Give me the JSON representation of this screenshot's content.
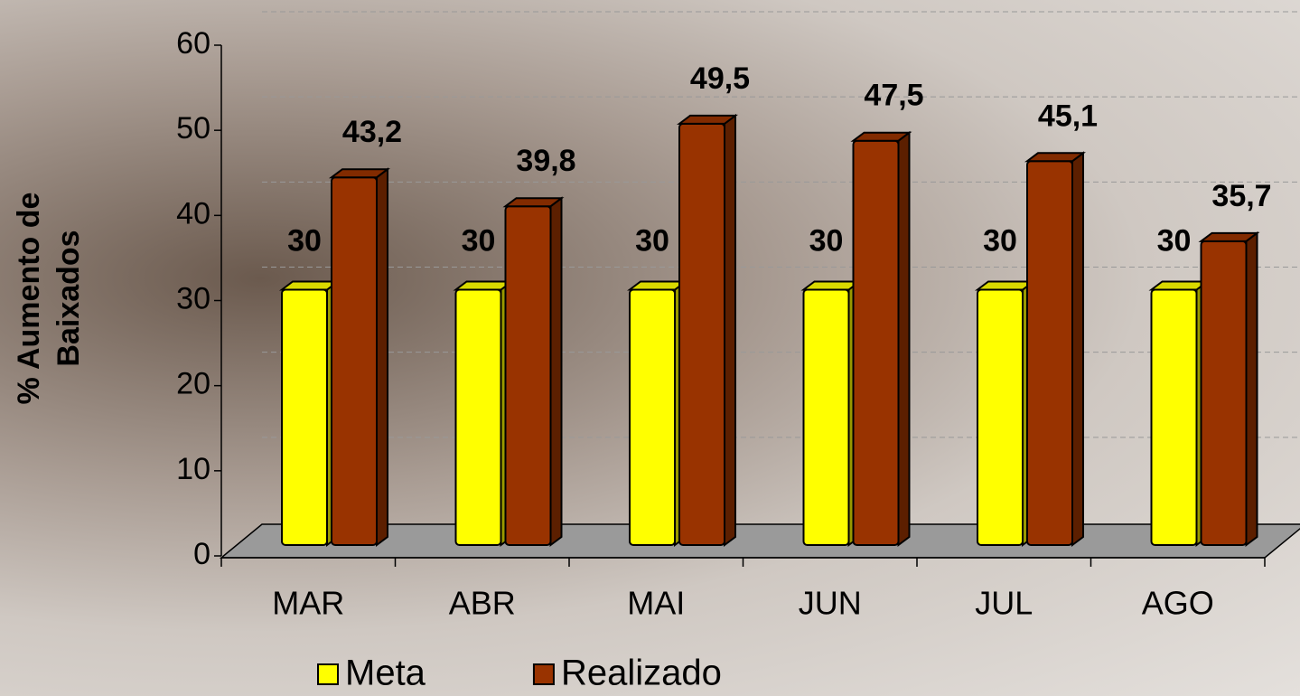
{
  "chart_data": {
    "type": "bar3d",
    "ylabel": "% Aumento de Baixados",
    "categories": [
      "MAR",
      "ABR",
      "MAI",
      "JUN",
      "JUL",
      "AGO"
    ],
    "series": [
      {
        "name": "Meta",
        "color": "#ffff00",
        "values": [
          30,
          30,
          30,
          30,
          30,
          30
        ]
      },
      {
        "name": "Realizado",
        "color": "#993300",
        "values": [
          43.2,
          39.8,
          49.5,
          47.5,
          45.1,
          35.7
        ],
        "value_labels": [
          "43,2",
          "39,8",
          "49,5",
          "47,5",
          "45,1",
          "35,7"
        ]
      }
    ],
    "ylim": [
      0,
      60
    ],
    "yticks": [
      0,
      10,
      20,
      30,
      40,
      50,
      60
    ],
    "grid": true
  }
}
